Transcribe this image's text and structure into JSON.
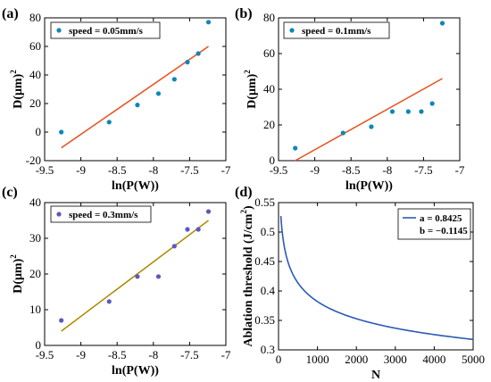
{
  "colors": {
    "axis": "#000000",
    "point_blue": "#0e86b8",
    "point_purple": "#5b58c0",
    "fit_red": "#e8501d",
    "fit_olive": "#b08a00",
    "curve_blue": "#2a5ab4"
  },
  "chart_data": [
    {
      "panel_label": "(a)",
      "type": "scatter",
      "xlabel": "ln(P(W))",
      "ylabel_base": "D(μm)",
      "ylabel_sup": "2",
      "xlim": [
        -9.5,
        -7
      ],
      "ylim": [
        -20,
        80
      ],
      "xticks": [
        -9.5,
        -9,
        -8.5,
        -8,
        -7.5,
        -7
      ],
      "xtick_labels": [
        "-9.5",
        "-9",
        "-8.5",
        "-8",
        "-7.5",
        "-7"
      ],
      "yticks": [
        -20,
        0,
        20,
        40,
        60,
        80
      ],
      "ytick_labels": [
        "-20",
        "0",
        "20",
        "40",
        "60",
        "80"
      ],
      "legend": "speed = 0.05mm/s",
      "points": {
        "x": [
          -9.27,
          -8.61,
          -8.22,
          -7.93,
          -7.71,
          -7.53,
          -7.38,
          -7.24
        ],
        "y": [
          0,
          7,
          19,
          27,
          37,
          49,
          55,
          77
        ]
      },
      "fit_line": {
        "x": [
          -9.27,
          -7.24
        ],
        "y": [
          -11,
          60
        ]
      }
    },
    {
      "panel_label": "(b)",
      "type": "scatter",
      "xlabel": "ln(P(W))",
      "ylabel_base": "D(μm)",
      "ylabel_sup": "2",
      "xlim": [
        -9.5,
        -7
      ],
      "ylim": [
        0,
        80
      ],
      "xticks": [
        -9.5,
        -9,
        -8.5,
        -8,
        -7.5,
        -7
      ],
      "xtick_labels": [
        "-9.5",
        "-9",
        "-8.5",
        "-8",
        "-7.5",
        "-7"
      ],
      "yticks": [
        0,
        20,
        40,
        60,
        80
      ],
      "ytick_labels": [
        "0",
        "20",
        "40",
        "60",
        "80"
      ],
      "legend": "speed = 0.1mm/s",
      "points": {
        "x": [
          -9.27,
          -8.61,
          -8.22,
          -7.93,
          -7.71,
          -7.53,
          -7.38,
          -7.24
        ],
        "y": [
          7,
          15.5,
          19,
          27.5,
          27.5,
          27.5,
          32,
          77
        ]
      },
      "fit_line": {
        "x": [
          -9.27,
          -7.24
        ],
        "y": [
          0,
          46
        ]
      }
    },
    {
      "panel_label": "(c)",
      "type": "scatter",
      "xlabel": "ln(P(W))",
      "ylabel_base": "D(μm)",
      "ylabel_sup": "2",
      "xlim": [
        -9.5,
        -7
      ],
      "ylim": [
        0,
        40
      ],
      "xticks": [
        -9.5,
        -9,
        -8.5,
        -8,
        -7.5,
        -7
      ],
      "xtick_labels": [
        "-9.5",
        "-9",
        "-8.5",
        "-8",
        "-7.5",
        "-7"
      ],
      "yticks": [
        0,
        10,
        20,
        30,
        40
      ],
      "ytick_labels": [
        "0",
        "10",
        "20",
        "30",
        "40"
      ],
      "legend": "speed = 0.3mm/s",
      "points": {
        "x": [
          -9.27,
          -8.61,
          -8.22,
          -7.93,
          -7.71,
          -7.53,
          -7.38,
          -7.24
        ],
        "y": [
          7,
          12.3,
          19.3,
          19.3,
          27.8,
          32.5,
          32.5,
          37.5
        ]
      },
      "fit_line": {
        "x": [
          -9.27,
          -7.24
        ],
        "y": [
          4,
          35
        ]
      }
    },
    {
      "panel_label": "(d)",
      "type": "line",
      "xlabel": "N",
      "ylabel_base": "Ablation threshold (J/cm",
      "ylabel_sup": "2",
      "ylabel_end": ")",
      "xlim": [
        0,
        5000
      ],
      "ylim": [
        0.3,
        0.55
      ],
      "xticks": [
        0,
        1000,
        2000,
        3000,
        4000,
        5000
      ],
      "xtick_labels": [
        "0",
        "1000",
        "2000",
        "3000",
        "4000",
        "5000"
      ],
      "yticks": [
        0.3,
        0.35,
        0.4,
        0.45,
        0.5,
        0.55
      ],
      "ytick_labels": [
        "0.3",
        "0.35",
        "0.4",
        "0.45",
        "0.5",
        "0.55"
      ],
      "legend_lines": [
        "a = 0.8425",
        "b = −0.1145"
      ],
      "model": {
        "form": "y = a * N^b",
        "a": 0.8425,
        "b": -0.1145,
        "N_range": [
          60,
          5000
        ]
      }
    }
  ]
}
